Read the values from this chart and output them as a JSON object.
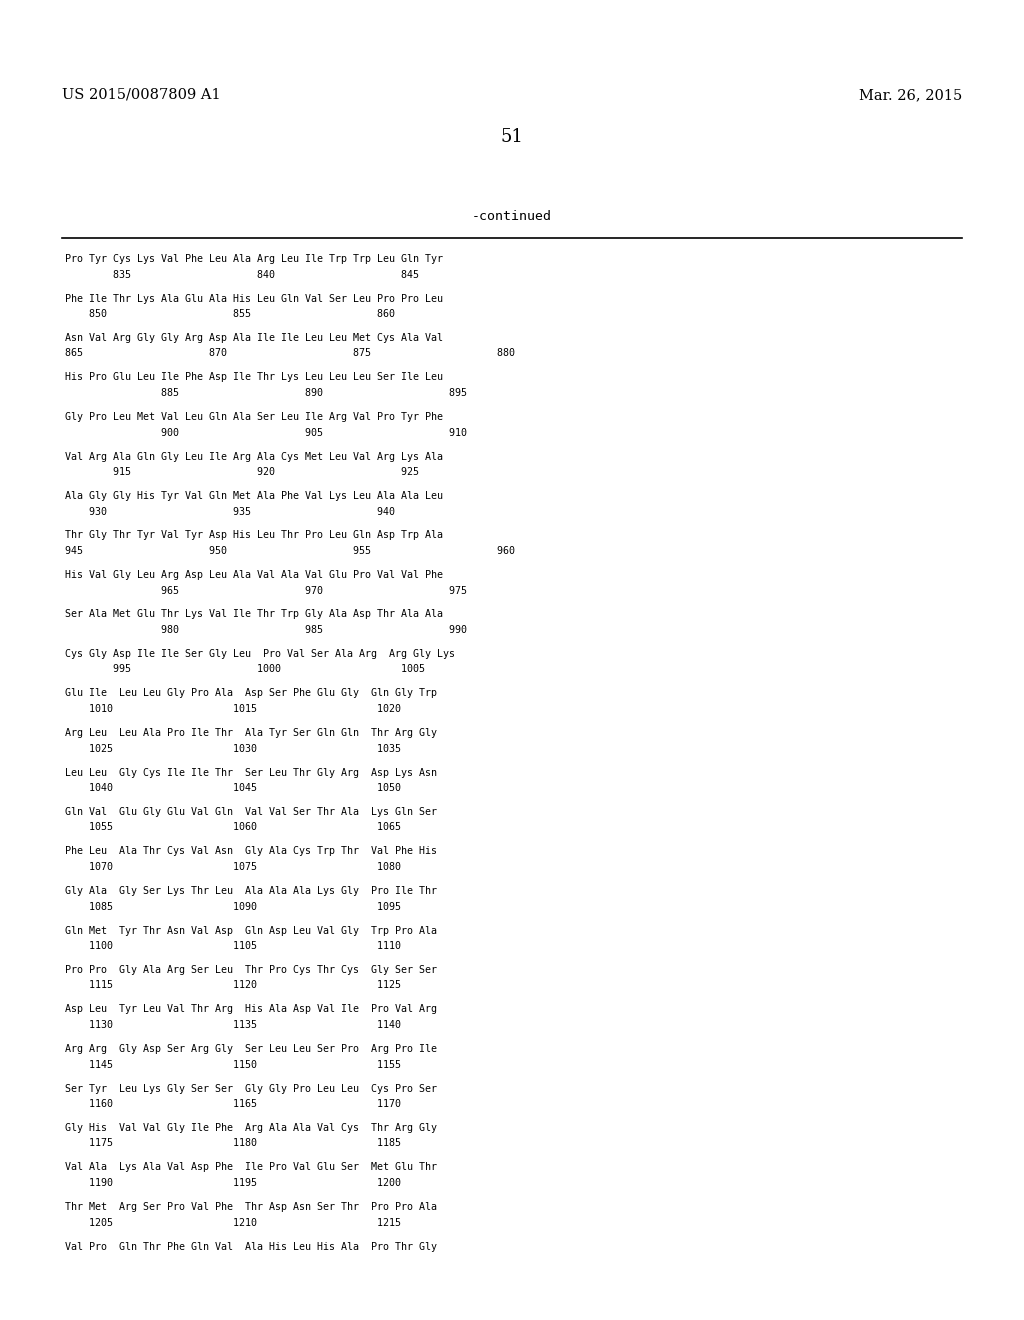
{
  "header_left": "US 2015/0087809 A1",
  "header_right": "Mar. 26, 2015",
  "page_number": "51",
  "continued_text": "-continued",
  "background_color": "#ffffff",
  "text_color": "#000000",
  "content_lines": [
    "Pro Tyr Cys Lys Val Phe Leu Ala Arg Leu Ile Trp Trp Leu Gln Tyr",
    "        835                     840                     845",
    "",
    "Phe Ile Thr Lys Ala Glu Ala His Leu Gln Val Ser Leu Pro Pro Leu",
    "    850                     855                     860",
    "",
    "Asn Val Arg Gly Gly Arg Asp Ala Ile Ile Leu Leu Met Cys Ala Val",
    "865                     870                     875                     880",
    "",
    "His Pro Glu Leu Ile Phe Asp Ile Thr Lys Leu Leu Leu Ser Ile Leu",
    "                885                     890                     895",
    "",
    "Gly Pro Leu Met Val Leu Gln Ala Ser Leu Ile Arg Val Pro Tyr Phe",
    "                900                     905                     910",
    "",
    "Val Arg Ala Gln Gly Leu Ile Arg Ala Cys Met Leu Val Arg Lys Ala",
    "        915                     920                     925",
    "",
    "Ala Gly Gly His Tyr Val Gln Met Ala Phe Val Lys Leu Ala Ala Leu",
    "    930                     935                     940",
    "",
    "Thr Gly Thr Tyr Val Tyr Asp His Leu Thr Pro Leu Gln Asp Trp Ala",
    "945                     950                     955                     960",
    "",
    "His Val Gly Leu Arg Asp Leu Ala Val Ala Val Glu Pro Val Val Phe",
    "                965                     970                     975",
    "",
    "Ser Ala Met Glu Thr Lys Val Ile Thr Trp Gly Ala Asp Thr Ala Ala",
    "                980                     985                     990",
    "",
    "Cys Gly Asp Ile Ile Ser Gly Leu  Pro Val Ser Ala Arg  Arg Gly Lys",
    "        995                     1000                    1005",
    "",
    "Glu Ile  Leu Leu Gly Pro Ala  Asp Ser Phe Glu Gly  Gln Gly Trp",
    "    1010                    1015                    1020",
    "",
    "Arg Leu  Leu Ala Pro Ile Thr  Ala Tyr Ser Gln Gln  Thr Arg Gly",
    "    1025                    1030                    1035",
    "",
    "Leu Leu  Gly Cys Ile Ile Thr  Ser Leu Thr Gly Arg  Asp Lys Asn",
    "    1040                    1045                    1050",
    "",
    "Gln Val  Glu Gly Glu Val Gln  Val Val Ser Thr Ala  Lys Gln Ser",
    "    1055                    1060                    1065",
    "",
    "Phe Leu  Ala Thr Cys Val Asn  Gly Ala Cys Trp Thr  Val Phe His",
    "    1070                    1075                    1080",
    "",
    "Gly Ala  Gly Ser Lys Thr Leu  Ala Ala Ala Lys Gly  Pro Ile Thr",
    "    1085                    1090                    1095",
    "",
    "Gln Met  Tyr Thr Asn Val Asp  Gln Asp Leu Val Gly  Trp Pro Ala",
    "    1100                    1105                    1110",
    "",
    "Pro Pro  Gly Ala Arg Ser Leu  Thr Pro Cys Thr Cys  Gly Ser Ser",
    "    1115                    1120                    1125",
    "",
    "Asp Leu  Tyr Leu Val Thr Arg  His Ala Asp Val Ile  Pro Val Arg",
    "    1130                    1135                    1140",
    "",
    "Arg Arg  Gly Asp Ser Arg Gly  Ser Leu Leu Ser Pro  Arg Pro Ile",
    "    1145                    1150                    1155",
    "",
    "Ser Tyr  Leu Lys Gly Ser Ser  Gly Gly Pro Leu Leu  Cys Pro Ser",
    "    1160                    1165                    1170",
    "",
    "Gly His  Val Val Gly Ile Phe  Arg Ala Ala Val Cys  Thr Arg Gly",
    "    1175                    1180                    1185",
    "",
    "Val Ala  Lys Ala Val Asp Phe  Ile Pro Val Glu Ser  Met Glu Thr",
    "    1190                    1195                    1200",
    "",
    "Thr Met  Arg Ser Pro Val Phe  Thr Asp Asn Ser Thr  Pro Pro Ala",
    "    1205                    1210                    1215",
    "",
    "Val Pro  Gln Thr Phe Gln Val  Ala His Leu His Ala  Pro Thr Gly"
  ]
}
